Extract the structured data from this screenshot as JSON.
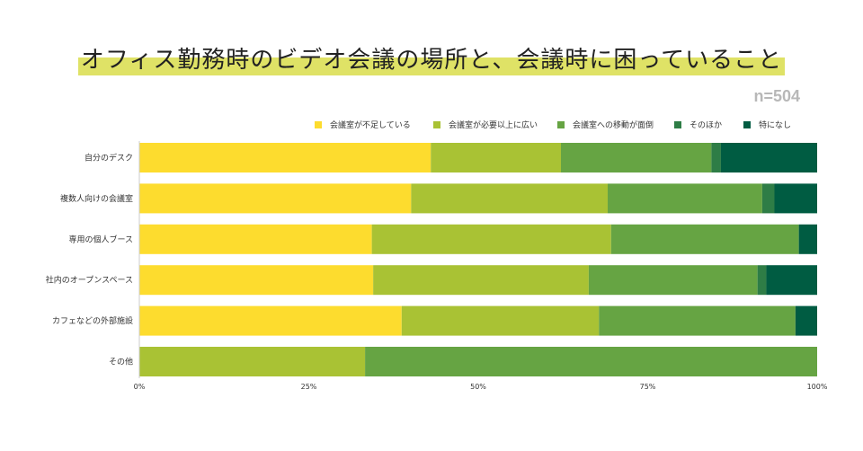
{
  "title": "オフィス勤務時のビデオ会議の場所と、会議時に困っていること",
  "n_label": "n=504",
  "colors": {
    "title_highlight": "#dfe266",
    "series": [
      "#fddc2e",
      "#a9c234",
      "#66a443",
      "#2e7d46",
      "#005c42"
    ]
  },
  "chart_data": {
    "type": "bar",
    "orientation": "horizontal",
    "stacked": true,
    "percent": true,
    "categories": [
      "自分のデスク",
      "複数人向けの会議室",
      "専用の個人ブース",
      "社内のオープンスペース",
      "カフェなどの外部施設",
      "その他"
    ],
    "series": [
      {
        "name": "会議室が不足している",
        "values": [
          43.0,
          40.1,
          34.3,
          34.5,
          38.7,
          0.0
        ]
      },
      {
        "name": "会議室が必要以上に広い",
        "values": [
          19.2,
          29.0,
          35.3,
          31.8,
          29.1,
          33.3
        ]
      },
      {
        "name": "会議室への移動が面倒",
        "values": [
          22.2,
          22.8,
          27.7,
          24.9,
          29.0,
          66.7
        ]
      },
      {
        "name": "そのほか",
        "values": [
          1.4,
          1.8,
          0.0,
          1.3,
          0.0,
          0.0
        ]
      },
      {
        "name": "特になし",
        "values": [
          14.2,
          6.3,
          2.7,
          7.5,
          3.2,
          0.0
        ]
      }
    ],
    "x_ticks": [
      "0%",
      "25%",
      "50%",
      "75%",
      "100%"
    ],
    "xlim": [
      0,
      100
    ],
    "legend_position": "top",
    "grid": false
  }
}
